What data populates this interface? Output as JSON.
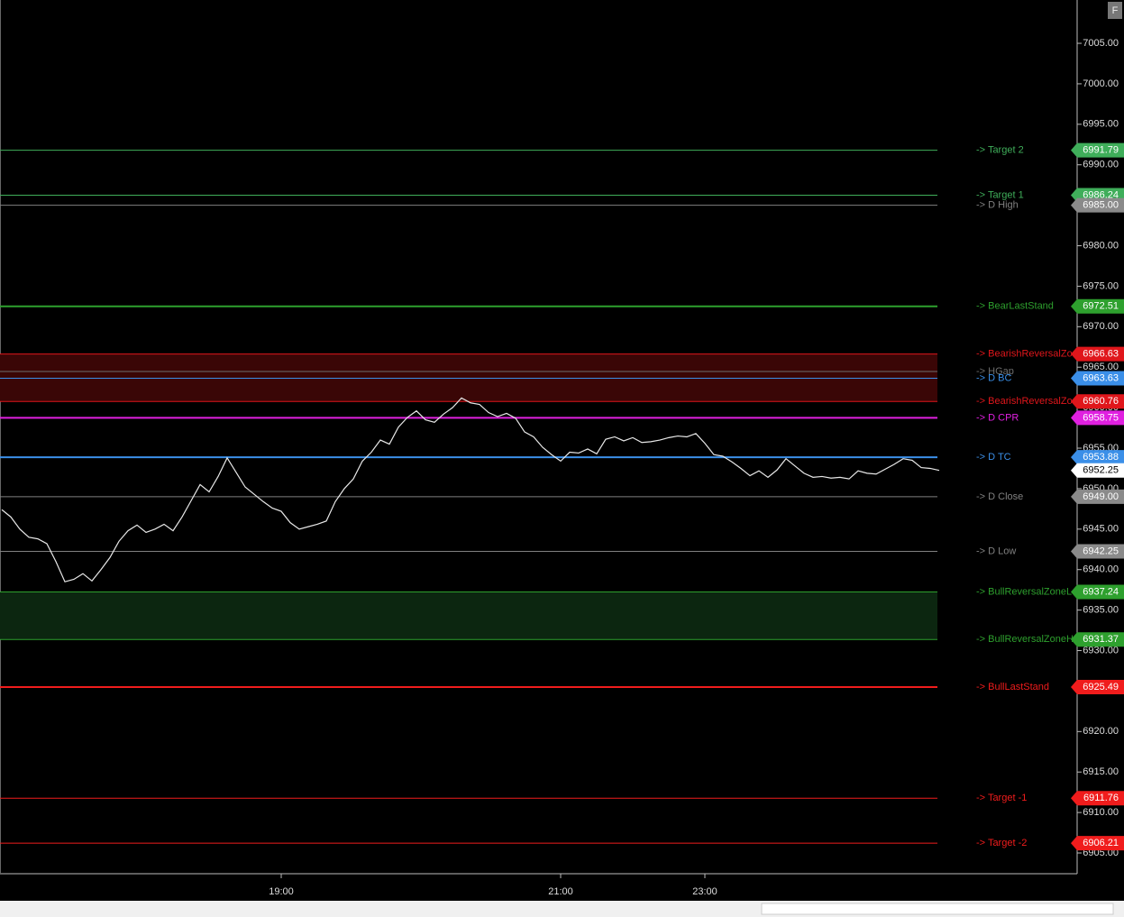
{
  "chart_data": {
    "type": "line",
    "ylim": [
      6902.44,
      7010.35
    ],
    "yticks": [
      {
        "value": 6905,
        "label": "6905.00"
      },
      {
        "value": 6910,
        "label": "6910.00"
      },
      {
        "value": 6915,
        "label": "6915.00"
      },
      {
        "value": 6920,
        "label": "6920.00"
      },
      {
        "value": 6925,
        "label": "6925.00"
      },
      {
        "value": 6930,
        "label": "6930.00"
      },
      {
        "value": 6935,
        "label": "6935.00"
      },
      {
        "value": 6940,
        "label": "6940.00"
      },
      {
        "value": 6945,
        "label": "6945.00"
      },
      {
        "value": 6950,
        "label": "6950.00"
      },
      {
        "value": 6955,
        "label": "6955.00"
      },
      {
        "value": 6960,
        "label": "6960.00"
      },
      {
        "value": 6965,
        "label": "6965.00"
      },
      {
        "value": 6970,
        "label": "6970.00"
      },
      {
        "value": 6975,
        "label": "6975.00"
      },
      {
        "value": 6980,
        "label": "6980.00"
      },
      {
        "value": 6985,
        "label": "6985.00"
      },
      {
        "value": 6990,
        "label": "6990.00"
      },
      {
        "value": 6995,
        "label": "6995.00"
      },
      {
        "value": 7000,
        "label": "7000.00"
      },
      {
        "value": 7005,
        "label": "7005.00"
      }
    ],
    "categories": [
      null,
      null,
      null,
      null,
      null,
      null,
      null,
      null,
      null,
      null,
      null,
      null,
      null,
      null,
      null,
      null,
      null,
      null,
      null,
      null,
      null,
      null,
      null,
      null,
      null,
      null,
      null,
      null,
      null,
      null,
      null,
      "19:00",
      null,
      null,
      null,
      null,
      null,
      null,
      null,
      null,
      null,
      null,
      null,
      null,
      null,
      null,
      null,
      null,
      null,
      null,
      null,
      null,
      null,
      null,
      null,
      null,
      null,
      null,
      null,
      null,
      null,
      null,
      "21:00",
      null,
      null,
      null,
      null,
      null,
      null,
      null,
      null,
      null,
      null,
      null,
      null,
      null,
      null,
      null,
      "23:00",
      null,
      null,
      null,
      null,
      null,
      null,
      null,
      null,
      null,
      null,
      null,
      null,
      null,
      null,
      null,
      null,
      null,
      null,
      null,
      null,
      null,
      null,
      null,
      null,
      null,
      null
    ],
    "series": [
      {
        "color": "#e8e8e8",
        "values": [
          6947.4,
          6946.5,
          6945.0,
          6944.0,
          6943.8,
          6943.2,
          6941.0,
          6938.5,
          6938.8,
          6939.5,
          6938.6,
          6940.0,
          6941.5,
          6943.5,
          6944.8,
          6945.5,
          6944.6,
          6945.0,
          6945.6,
          6944.8,
          6946.5,
          6948.5,
          6950.5,
          6949.6,
          6951.5,
          6953.8,
          6952.0,
          6950.2,
          6949.3,
          6948.4,
          6947.6,
          6947.2,
          6945.8,
          6945.0,
          6945.3,
          6945.6,
          6946.0,
          6948.4,
          6950.0,
          6951.2,
          6953.4,
          6954.5,
          6956.0,
          6955.5,
          6957.6,
          6958.8,
          6959.6,
          6958.5,
          6958.2,
          6959.2,
          6960.0,
          6961.2,
          6960.6,
          6960.4,
          6959.4,
          6958.9,
          6959.3,
          6958.7,
          6957.0,
          6956.4,
          6955.1,
          6954.2,
          6953.4,
          6954.5,
          6954.4,
          6954.9,
          6954.3,
          6956.1,
          6956.4,
          6955.9,
          6956.3,
          6955.7,
          6955.8,
          6956.0,
          6956.3,
          6956.5,
          6956.4,
          6956.8,
          6955.6,
          6954.2,
          6954.0,
          6953.3,
          6952.5,
          6951.6,
          6952.2,
          6951.4,
          6952.3,
          6953.7,
          6952.8,
          6951.9,
          6951.4,
          6951.5,
          6951.3,
          6951.4,
          6951.2,
          6952.2,
          6951.9,
          6951.8,
          6952.4,
          6953.0,
          6953.7,
          6953.5,
          6952.6,
          6952.5,
          6952.25
        ]
      }
    ],
    "levels": [
      {
        "name": "-> Target 2",
        "value": 6991.79,
        "color": "#3fae5a"
      },
      {
        "name": "-> Target 1",
        "value": 6986.24,
        "color": "#3fae5a"
      },
      {
        "name": "-> D High",
        "value": 6985.0,
        "color": "#808080",
        "value_label": "6985.00"
      },
      {
        "name": "-> BearLastStand",
        "value": 6972.51,
        "color": "#2ea02e"
      },
      {
        "name": "-> BearishReversalZo",
        "value": 6966.63,
        "color": "#e0161b",
        "zone": "#3a0606"
      },
      {
        "name": "-> HGap",
        "value": 6964.47,
        "color": "#6e6e6e"
      },
      {
        "name": "-> D BC",
        "value": 6963.63,
        "color": "#3b8fe8"
      },
      {
        "name": "-> BearishReversalZo",
        "value": 6960.76,
        "color": "#e0161b",
        "zone": "#3a0606"
      },
      {
        "name": "-> D CPR",
        "value": 6958.75,
        "color": "#e020e0"
      },
      {
        "name": "-> D TC",
        "value": 6953.88,
        "color": "#3b8fe8"
      },
      {
        "name": "-> D Close",
        "value": 6949.0,
        "color": "#808080",
        "value_label": "6949.00"
      },
      {
        "name": "-> D Low",
        "value": 6942.25,
        "color": "#808080"
      },
      {
        "name": "-> BullReversalZoneL",
        "value": 6937.24,
        "color": "#2ea02e",
        "zone": "#0c2610"
      },
      {
        "name": "-> BullReversalZoneH",
        "value": 6931.37,
        "color": "#2ea02e",
        "zone": "#0c2610"
      },
      {
        "name": "-> BullLastStand",
        "value": 6925.49,
        "color": "#f01c1c"
      },
      {
        "name": "-> Target -1",
        "value": 6911.76,
        "color": "#f01c1c"
      },
      {
        "name": "-> Target -2",
        "value": 6906.21,
        "color": "#f01c1c"
      }
    ],
    "button": "F"
  }
}
